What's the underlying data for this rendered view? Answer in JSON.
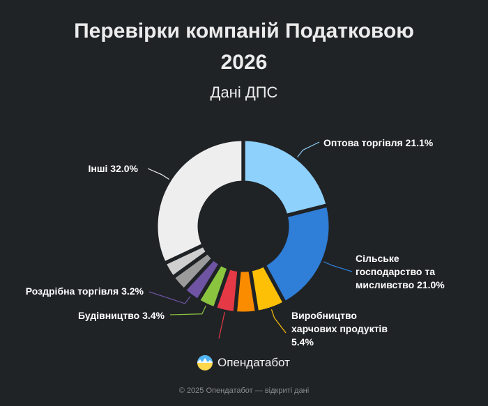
{
  "header": {
    "title_line1": "Перевірки компаній Податковою",
    "title_line2": "2026",
    "subtitle": "Дані ДПС"
  },
  "brand": {
    "name": "Опендатабот",
    "logo_icon": "opendatabot-logo-icon"
  },
  "footer": {
    "text": "© 2025 Опендатабот — відкриті дані"
  },
  "chart_data": {
    "type": "pie",
    "variant": "donut",
    "title": "Перевірки компаній Податковою 2026",
    "subtitle": "Дані ДПС",
    "legend": "none",
    "slices": [
      {
        "label": "Оптова торгівля",
        "value": 21.1,
        "display": "21.1%",
        "color": "#8ed1fc",
        "label_lines": [
          "Оптова торгівля 21.1%"
        ]
      },
      {
        "label": "Сільське господарство та мисливство",
        "value": 21.0,
        "display": "21.0%",
        "color": "#2f7ed8",
        "label_lines": [
          "Сільське",
          "господарство та",
          "мисливство 21.0%"
        ]
      },
      {
        "label": "Виробництво харчових продуктів",
        "value": 5.4,
        "display": "5.4%",
        "color": "#fdc007",
        "label_lines": [
          "Виробництво",
          "харчових продуктів",
          "5.4%"
        ]
      },
      {
        "label": "",
        "value": 4.0,
        "color": "#fb8c00",
        "label_lines": []
      },
      {
        "label": "",
        "value": 3.8,
        "color": "#e63946",
        "label_lines": []
      },
      {
        "label": "Будівництво",
        "value": 3.4,
        "display": "3.4%",
        "color": "#8bc53f",
        "label_lines": [
          "Будівництво 3.4%"
        ]
      },
      {
        "label": "Роздрібна торгівля",
        "value": 3.2,
        "display": "3.2%",
        "color": "#6e54a3",
        "label_lines": [
          "Роздрібна торгівля 3.2%"
        ]
      },
      {
        "label": "",
        "value": 3.1,
        "color": "#9b9b9b",
        "label_lines": []
      },
      {
        "label": "",
        "value": 3.0,
        "color": "#cfcfcf",
        "label_lines": []
      },
      {
        "label": "Інші",
        "value": 32.0,
        "display": "32.0%",
        "color": "#eeeeee",
        "label_lines": [
          "Інші 32.0%"
        ]
      }
    ]
  }
}
